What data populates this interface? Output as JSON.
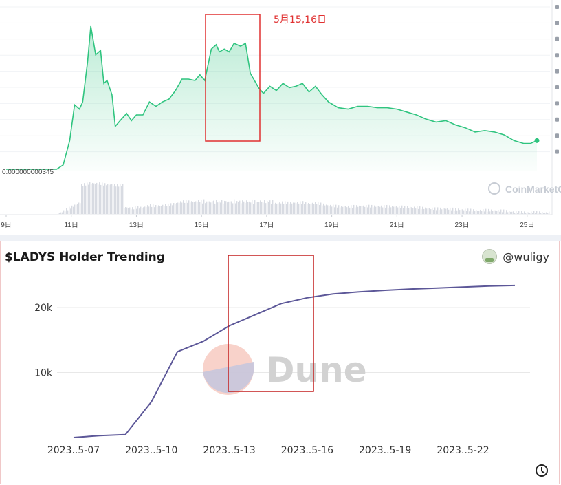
{
  "price_chart": {
    "annotation": "5月15,16日",
    "start_price_label": "0.000000000345",
    "watermark": "CoinMarketCap",
    "colors": {
      "line": "#2fc47f",
      "fill": "#2fc47f",
      "volume": "#c8cdd6",
      "highlight": "#e03030"
    }
  },
  "holder_chart": {
    "title": "$LADYS Holder Trending",
    "username": "@wuligy",
    "watermark": "Dune",
    "colors": {
      "line": "#5c5798",
      "grid": "#e8e8e8",
      "highlight": "#c41e1e"
    }
  },
  "chart_data": [
    {
      "type": "area",
      "title": "",
      "xlabel": "",
      "ylabel": "",
      "x_ticks": [
        "9日",
        "11日",
        "13日",
        "15日",
        "17日",
        "19日",
        "21日",
        "23日",
        "25日"
      ],
      "x_range": [
        9,
        25.5
      ],
      "y_labels": [
        "0.000000000345"
      ],
      "grid": true,
      "note": "",
      "series": [
        {
          "name": "",
          "x": [
            10.55,
            10.75,
            10.95,
            11.1,
            11.25,
            11.35,
            11.5,
            11.6,
            11.75,
            11.9,
            12.0,
            12.1,
            12.25,
            12.35,
            12.5,
            12.7,
            12.85,
            13.0,
            13.2,
            13.4,
            13.6,
            13.8,
            14.0,
            14.2,
            14.4,
            14.6,
            14.8,
            14.95,
            15.1,
            15.3,
            15.45,
            15.55,
            15.7,
            15.85,
            16.0,
            16.2,
            16.35,
            16.5,
            16.6,
            16.75,
            16.9,
            17.1,
            17.3,
            17.5,
            17.7,
            17.9,
            18.1,
            18.3,
            18.5,
            18.7,
            18.9,
            19.2,
            19.5,
            19.8,
            20.1,
            20.4,
            20.7,
            21.0,
            21.3,
            21.6,
            21.9,
            22.2,
            22.5,
            22.8,
            23.1,
            23.4,
            23.7,
            24.0,
            24.3,
            24.6,
            24.9,
            25.1,
            25.3
          ],
          "values": [
            0,
            3,
            20,
            45,
            42,
            47,
            75,
            100,
            80,
            83,
            60,
            62,
            52,
            30,
            34,
            39,
            34,
            38,
            38,
            47,
            44,
            47,
            49,
            55,
            63,
            63,
            62,
            66,
            62,
            84,
            87,
            82,
            84,
            82,
            88,
            86,
            88,
            67,
            63,
            57,
            53,
            58,
            55,
            60,
            57,
            58,
            60,
            54,
            58,
            52,
            47,
            43,
            42,
            44,
            44,
            43,
            43,
            42,
            40,
            38,
            35,
            33,
            34,
            31,
            29,
            26,
            27,
            26,
            24,
            20,
            18,
            18,
            20
          ]
        }
      ]
    },
    {
      "type": "line",
      "title": "$LADYS Holder Trending",
      "xlabel": "",
      "ylabel": "",
      "x_ticks": [
        "2023..5-07",
        "2023..5-10",
        "2023..5-13",
        "2023..5-16",
        "2023..5-19",
        "2023..5-22"
      ],
      "y_ticks": [
        "10k",
        "20k"
      ],
      "ylim": [
        0,
        25000
      ],
      "grid": true,
      "categories": [
        "2023..5-07",
        "2023..5-08",
        "2023..5-09",
        "2023..5-10",
        "2023..5-11",
        "2023..5-12",
        "2023..5-13",
        "2023..5-14",
        "2023..5-15",
        "2023..5-16",
        "2023..5-17",
        "2023..5-18",
        "2023..5-19",
        "2023..5-20",
        "2023..5-21",
        "2023..5-22",
        "2023..5-23",
        "2023..5-24"
      ],
      "series": [
        {
          "name": "",
          "values": [
            0,
            300,
            450,
            5500,
            13200,
            14800,
            17200,
            18900,
            20600,
            21500,
            22100,
            22400,
            22650,
            22850,
            23000,
            23150,
            23300,
            23400
          ]
        }
      ]
    }
  ]
}
